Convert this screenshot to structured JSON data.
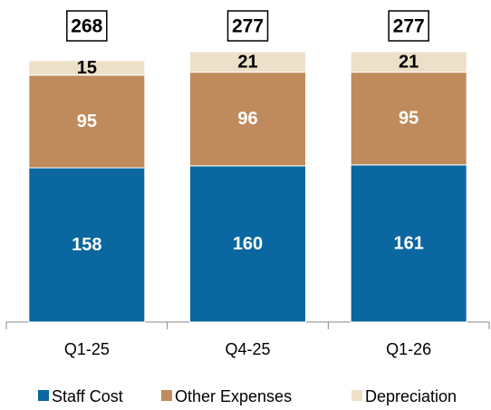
{
  "chart_data": {
    "type": "stacked_bar",
    "categories": [
      "Q1-25",
      "Q4-25",
      "Q1-26"
    ],
    "series": [
      {
        "name": "Staff Cost",
        "color": "#0a679f",
        "label_color": "#ffffff",
        "values": [
          158,
          160,
          161
        ]
      },
      {
        "name": "Other Expenses",
        "color": "#c08b5c",
        "label_color": "#ffffff",
        "values": [
          95,
          96,
          95
        ]
      },
      {
        "name": "Depreciation",
        "color": "#ede0c9",
        "label_color": "#000000",
        "values": [
          15,
          21,
          21
        ]
      }
    ],
    "totals": [
      268,
      277,
      277
    ]
  }
}
